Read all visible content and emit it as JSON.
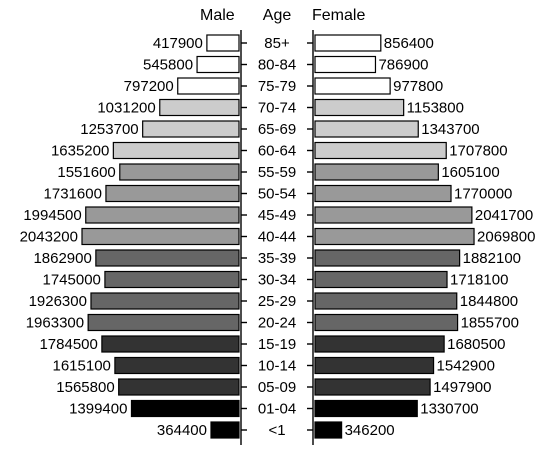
{
  "chart_data": {
    "type": "bar",
    "orientation": "horizontal",
    "layout": "population-pyramid",
    "headers": {
      "left": "Male",
      "center": "Age",
      "right": "Female"
    },
    "categories": [
      "85+",
      "80-84",
      "75-79",
      "70-74",
      "65-69",
      "60-64",
      "55-59",
      "50-54",
      "45-49",
      "40-44",
      "35-39",
      "30-34",
      "25-29",
      "20-24",
      "15-19",
      "10-14",
      "05-09",
      "01-04",
      "<1"
    ],
    "series": [
      {
        "name": "Male",
        "side": "left",
        "values": [
          417900,
          545800,
          797200,
          1031200,
          1253700,
          1635200,
          1551600,
          1731600,
          1994500,
          2043200,
          1862900,
          1745000,
          1926300,
          1963300,
          1784500,
          1615100,
          1565800,
          1399400,
          364400
        ]
      },
      {
        "name": "Female",
        "side": "right",
        "values": [
          856400,
          786900,
          977800,
          1153800,
          1343700,
          1707800,
          1605100,
          1770000,
          2041700,
          2069800,
          1882100,
          1718100,
          1844800,
          1855700,
          1680500,
          1542900,
          1497900,
          1330700,
          346200
        ]
      }
    ],
    "bar_fills": [
      "#ffffff",
      "#ffffff",
      "#ffffff",
      "#cccccc",
      "#cccccc",
      "#cccccc",
      "#999999",
      "#999999",
      "#999999",
      "#999999",
      "#666666",
      "#666666",
      "#666666",
      "#666666",
      "#333333",
      "#333333",
      "#333333",
      "#000000",
      "#000000"
    ],
    "grid": false,
    "legend": "none"
  }
}
